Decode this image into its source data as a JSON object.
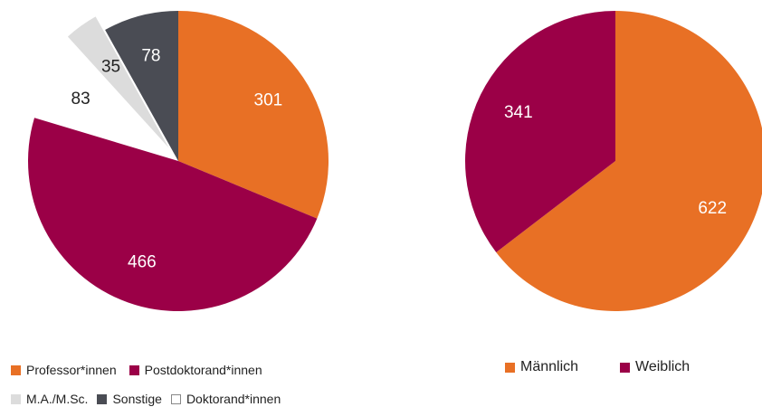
{
  "chart_data": [
    {
      "type": "pie",
      "categories": [
        "Professor*innen",
        "Postdoktorand*innen",
        "Doktorand*innen",
        "M.A./M.Sc.",
        "Sonstige"
      ],
      "values": [
        301,
        466,
        83,
        35,
        78
      ],
      "colors": [
        "#e87025",
        "#9b0047",
        "#ffffff",
        "#dcdcdc",
        "#4a4c54"
      ],
      "label_colors": [
        "#ffffff",
        "#ffffff",
        "#222222",
        "#222222",
        "#ffffff"
      ],
      "start_angle_deg": 0,
      "direction": "clockwise",
      "exploded": [
        "Doktorand*innen",
        "M.A./M.Sc."
      ],
      "legend": {
        "placement": "bottom-left",
        "rows": [
          [
            "Professor*innen",
            "Postdoktorand*innen"
          ],
          [
            "M.A./M.Sc.",
            "Sonstige",
            "Doktorand*innen"
          ]
        ]
      }
    },
    {
      "type": "pie",
      "categories": [
        "Männlich",
        "Weiblich"
      ],
      "values": [
        622,
        341
      ],
      "colors": [
        "#e87025",
        "#9b0047"
      ],
      "label_colors": [
        "#ffffff",
        "#ffffff"
      ],
      "start_angle_deg": 0,
      "direction": "clockwise",
      "legend": {
        "placement": "bottom",
        "rows": [
          [
            "Männlich",
            "Weiblich"
          ]
        ]
      }
    }
  ]
}
